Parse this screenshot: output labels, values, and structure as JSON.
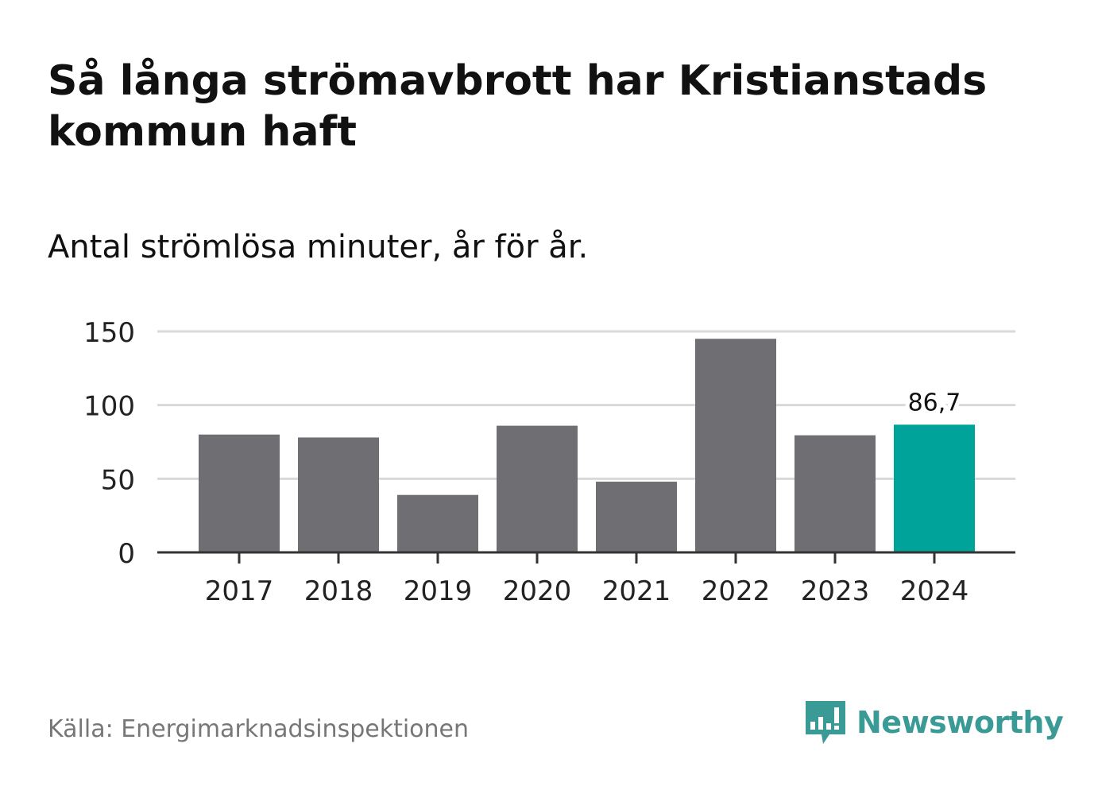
{
  "title": "Så långa strömavbrott har Kristianstads kommun haft",
  "subtitle": "Antal strömlösa minuter, år för år.",
  "footer": {
    "source": "Källa: Energimarknadsinspektionen",
    "brand": "Newsworthy",
    "brand_icon": "chart-speech-bubble-icon"
  },
  "colors": {
    "bar": "#6f6e73",
    "highlight": "#00a39a",
    "grid": "#d9d9d9",
    "axis": "#333333",
    "brand": "#3a9a95"
  },
  "chart_data": {
    "type": "bar",
    "title": "Så långa strömavbrott har Kristianstads kommun haft",
    "subtitle": "Antal strömlösa minuter, år för år.",
    "xlabel": "",
    "ylabel": "",
    "categories": [
      "2017",
      "2018",
      "2019",
      "2020",
      "2021",
      "2022",
      "2023",
      "2024"
    ],
    "values": [
      80,
      78,
      39,
      86,
      48,
      145,
      79.5,
      86.7
    ],
    "highlight_index": 7,
    "data_labels": [
      {
        "index": 7,
        "text": "86,7"
      }
    ],
    "ylim": [
      0,
      150
    ],
    "yticks": [
      0,
      50,
      100,
      150
    ],
    "ytick_labels": [
      "0",
      "50",
      "100",
      "150"
    ],
    "grid": true,
    "legend": "none"
  }
}
